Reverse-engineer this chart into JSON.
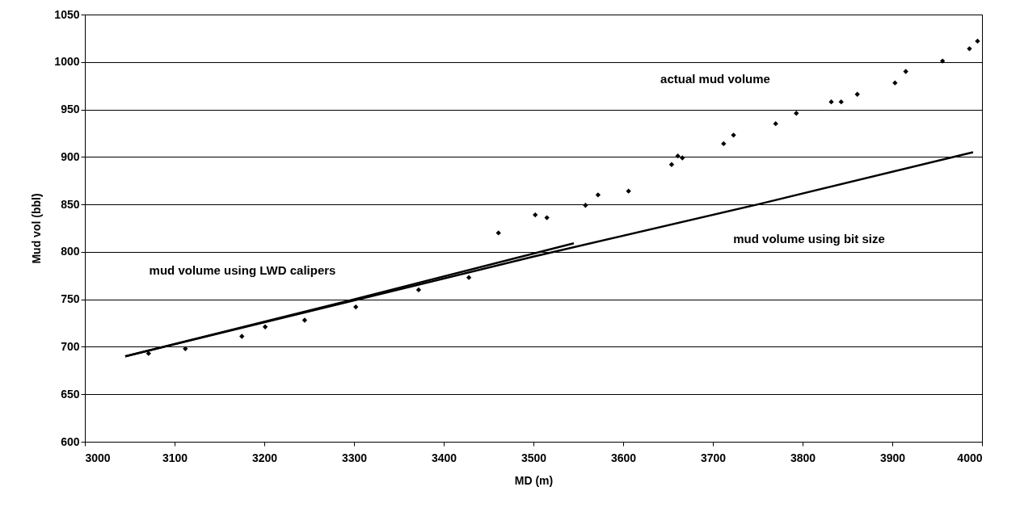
{
  "chart_data": {
    "type": "scatter",
    "xlabel": "MD (m)",
    "ylabel": "Mud vol (bbl)",
    "xlim": [
      3000,
      4000
    ],
    "xticks": [
      3000,
      3100,
      3200,
      3300,
      3400,
      3500,
      3600,
      3700,
      3800,
      3900,
      4000
    ],
    "ylim": [
      600,
      1050
    ],
    "yticks": [
      600,
      650,
      700,
      750,
      800,
      850,
      900,
      950,
      1000,
      1050
    ],
    "grid": "y",
    "series": [
      {
        "type": "line",
        "color": "#000000",
        "line_style": "solid",
        "x": [
          3045,
          3300,
          3545
        ],
        "values": [
          690,
          750,
          809
        ]
      },
      {
        "type": "line",
        "color": "#000000",
        "line_style": "solid",
        "x": [
          3045,
          3500,
          3750,
          3990
        ],
        "values": [
          690,
          795,
          850,
          905
        ]
      },
      {
        "color": "#000000",
        "marker": "diamond",
        "x": [
          3071,
          3112,
          3175,
          3201,
          3245,
          3302,
          3372,
          3428,
          3461,
          3502,
          3515,
          3558,
          3572,
          3606,
          3654,
          3661,
          3666,
          3712,
          3723,
          3770,
          3793,
          3832,
          3843,
          3861,
          3903,
          3915,
          3956,
          3986,
          3995
        ],
        "values": [
          693,
          698,
          711,
          721,
          728,
          742,
          760,
          773,
          820,
          839,
          836,
          849,
          860,
          864,
          892,
          901,
          899,
          914,
          923,
          935,
          946,
          958,
          958,
          966,
          978,
          990,
          1001,
          1014,
          1022
        ]
      }
    ],
    "annotations": [
      "actual mud volume",
      "mud volume using LWD calipers",
      "mud volume using bit size"
    ]
  }
}
